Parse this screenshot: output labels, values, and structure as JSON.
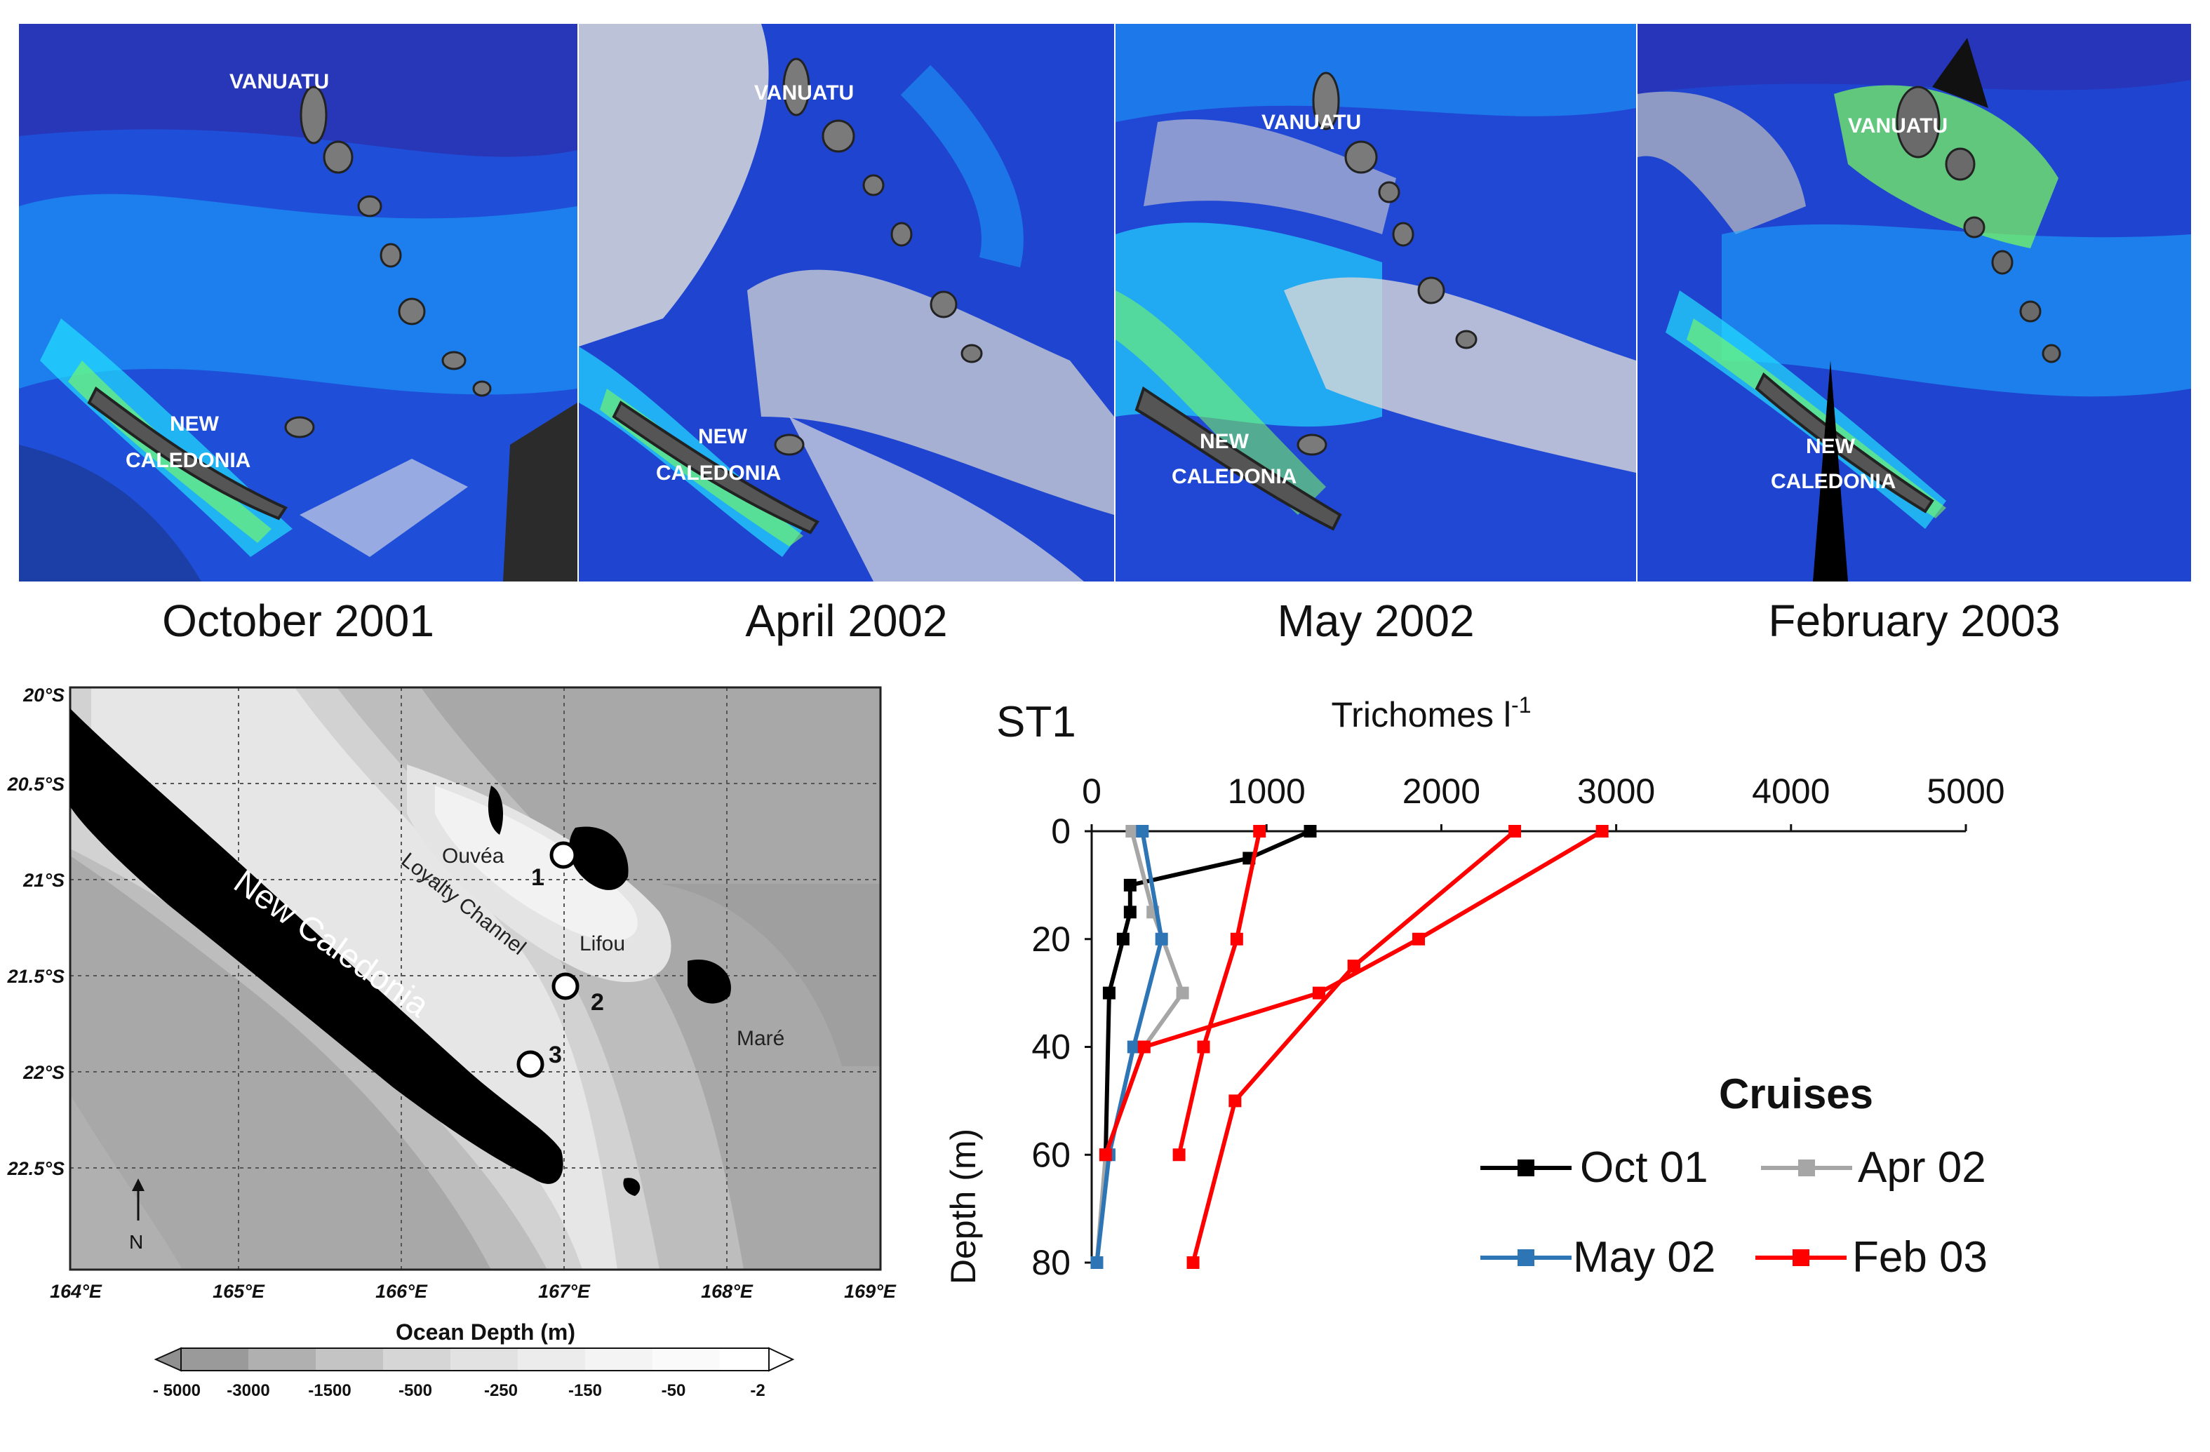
{
  "satellite_panels": [
    {
      "caption": "October 2001",
      "labels": [
        "VANUATU",
        "NEW",
        "CALEDONIA"
      ]
    },
    {
      "caption": "April 2002",
      "labels": [
        "VANUATU",
        "NEW",
        "CALEDONIA"
      ]
    },
    {
      "caption": "May 2002",
      "labels": [
        "VANUATU",
        "NEW",
        "CALEDONIA"
      ]
    },
    {
      "caption": "February 2003",
      "labels": [
        "VANUATU",
        "NEW",
        "CALEDONIA"
      ]
    }
  ],
  "map": {
    "lat_labels": [
      "20°S",
      "20.5°S",
      "21°S",
      "21.5°S",
      "22°S",
      "22.5°S"
    ],
    "lon_labels": [
      "164°E",
      "165°E",
      "166°E",
      "167°E",
      "168°E",
      "169°E"
    ],
    "places": {
      "new_caledonia": "New Caledonia",
      "ouvea": "Ouvéa",
      "lifou": "Lifou",
      "mare": "Maré",
      "channel": "Loyalty Channel"
    },
    "stations": [
      "1",
      "2",
      "3"
    ],
    "north": "N",
    "colorbar_title": "Ocean Depth (m)",
    "colorbar_ticks": [
      "- 5000",
      "-3000",
      "-1500",
      "-500",
      "-250",
      "-150",
      "-50",
      "-2"
    ]
  },
  "chart_data": {
    "type": "line",
    "title": "ST1",
    "xlabel": "Trichomes l",
    "xlabel_sup": "-1",
    "ylabel": "Depth (m)",
    "xlim": [
      0,
      5000
    ],
    "ylim": [
      0,
      80
    ],
    "xticks": [
      "0",
      "1000",
      "2000",
      "3000",
      "4000",
      "5000"
    ],
    "yticks": [
      "0",
      "20",
      "40",
      "60",
      "80"
    ],
    "legend_title": "Cruises",
    "legend_position": "bottom-right",
    "series": [
      {
        "name": "Oct 01",
        "color": "#000000",
        "points": [
          [
            1250,
            0
          ],
          [
            900,
            5
          ],
          [
            220,
            10
          ],
          [
            220,
            15
          ],
          [
            180,
            20
          ],
          [
            100,
            30
          ],
          [
            80,
            60
          ]
        ]
      },
      {
        "name": "Apr 02",
        "color": "#a6a6a6",
        "points": [
          [
            230,
            0
          ],
          [
            350,
            15
          ],
          [
            520,
            30
          ],
          [
            300,
            40
          ],
          [
            80,
            60
          ],
          [
            30,
            80
          ]
        ]
      },
      {
        "name": "May 02",
        "color": "#2e75b6",
        "points": [
          [
            290,
            0
          ],
          [
            400,
            20
          ],
          [
            240,
            40
          ],
          [
            100,
            60
          ],
          [
            30,
            80
          ]
        ]
      },
      {
        "name": "Feb 03",
        "color": "#ff0000",
        "points": [
          [
            2920,
            0
          ],
          [
            1870,
            20
          ],
          [
            1300,
            30
          ],
          [
            300,
            40
          ],
          [
            80,
            60
          ]
        ]
      },
      {
        "name": "Feb 03",
        "color": "#ff0000",
        "points": [
          [
            2420,
            0
          ],
          [
            1500,
            25
          ]
        ]
      },
      {
        "name": "Feb 03",
        "color": "#ff0000",
        "points": [
          [
            960,
            0
          ],
          [
            830,
            20
          ],
          [
            640,
            40
          ],
          [
            500,
            60
          ]
        ]
      },
      {
        "name": "Feb 03",
        "color": "#ff0000",
        "points": [
          [
            1500,
            25
          ],
          [
            820,
            50
          ],
          [
            580,
            80
          ]
        ]
      }
    ]
  }
}
